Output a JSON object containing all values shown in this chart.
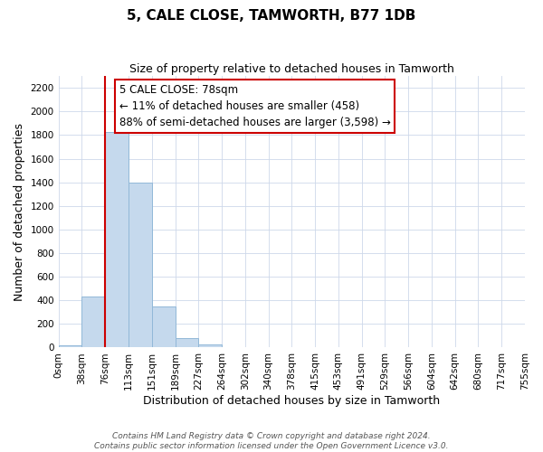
{
  "title": "5, CALE CLOSE, TAMWORTH, B77 1DB",
  "subtitle": "Size of property relative to detached houses in Tamworth",
  "xlabel": "Distribution of detached houses by size in Tamworth",
  "ylabel": "Number of detached properties",
  "x_labels": [
    "0sqm",
    "38sqm",
    "76sqm",
    "113sqm",
    "151sqm",
    "189sqm",
    "227sqm",
    "264sqm",
    "302sqm",
    "340sqm",
    "378sqm",
    "415sqm",
    "453sqm",
    "491sqm",
    "529sqm",
    "566sqm",
    "604sqm",
    "642sqm",
    "680sqm",
    "717sqm",
    "755sqm"
  ],
  "bar_values": [
    20,
    430,
    1830,
    1400,
    350,
    80,
    25,
    0,
    0,
    0,
    0,
    0,
    0,
    0,
    0,
    0,
    0,
    0,
    0,
    0
  ],
  "bar_color": "#c5d9ed",
  "bar_edge_color": "#92b8d8",
  "vline_x_label": "76sqm",
  "vline_color": "#cc0000",
  "ylim": [
    0,
    2300
  ],
  "yticks": [
    0,
    200,
    400,
    600,
    800,
    1000,
    1200,
    1400,
    1600,
    1800,
    2000,
    2200
  ],
  "annotation_line1": "5 CALE CLOSE: 78sqm",
  "annotation_line2": "← 11% of detached houses are smaller (458)",
  "annotation_line3": "88% of semi-detached houses are larger (3,598) →",
  "annotation_box_color": "#ffffff",
  "annotation_box_edge": "#cc0000",
  "footer_line1": "Contains HM Land Registry data © Crown copyright and database right 2024.",
  "footer_line2": "Contains public sector information licensed under the Open Government Licence v3.0.",
  "title_fontsize": 11,
  "subtitle_fontsize": 9,
  "axis_label_fontsize": 9,
  "tick_fontsize": 7.5,
  "annotation_fontsize": 8.5,
  "footer_fontsize": 6.5,
  "background_color": "#ffffff",
  "grid_color": "#cdd8ea"
}
